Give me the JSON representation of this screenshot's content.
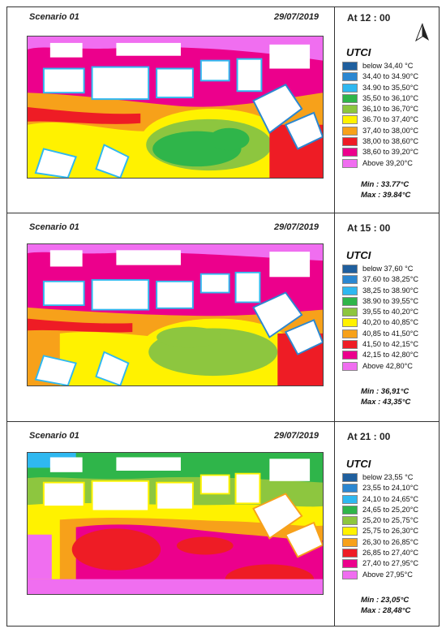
{
  "legend_title": "UTCI",
  "panels": [
    {
      "scenario": "Scenario 01",
      "date": "29/07/2019",
      "time": "At  12 : 00",
      "min": "Min : 33.77°C",
      "max": "Max : 39.84°C",
      "legend": [
        {
          "label": "below   34,40 °C",
          "color": "#1f5f9e"
        },
        {
          "label": "34,40 to 34.90°C",
          "color": "#2b87d1"
        },
        {
          "label": "34.90 to 35,50°C",
          "color": "#2fb8f0"
        },
        {
          "label": "35,50 to 36,10°C",
          "color": "#2fb54a"
        },
        {
          "label": "36,10 to 36,70°C",
          "color": "#8dc63f"
        },
        {
          "label": "36.70 to 37,40°C",
          "color": "#fff200"
        },
        {
          "label": "37,40 to 38,00°C",
          "color": "#f7a11a"
        },
        {
          "label": "38,00 to 38,60°C",
          "color": "#ee1c25"
        },
        {
          "label": "38,60 to 39,20°C",
          "color": "#ec008c"
        },
        {
          "label": "Above   39,20°C",
          "color": "#f06ef0"
        }
      ]
    },
    {
      "scenario": "Scenario 01",
      "date": "29/07/2019",
      "time": "At  15 : 00",
      "min": "Min : 36,91°C",
      "max": "Max : 43,35°C",
      "legend": [
        {
          "label": "below   37,60 °C",
          "color": "#1f5f9e"
        },
        {
          "label": "37.60 to 38,25°C",
          "color": "#2b87d1"
        },
        {
          "label": "38,25 to 38.90°C",
          "color": "#2fb8f0"
        },
        {
          "label": "38.90 to 39,55°C",
          "color": "#2fb54a"
        },
        {
          "label": "39,55 to 40,20°C",
          "color": "#8dc63f"
        },
        {
          "label": "40,20 to 40,85°C",
          "color": "#fff200"
        },
        {
          "label": "40,85 to 41,50°C",
          "color": "#f7a11a"
        },
        {
          "label": "41,50 to 42,15°C",
          "color": "#ee1c25"
        },
        {
          "label": "42,15 to 42,80°C",
          "color": "#ec008c"
        },
        {
          "label": "Above   42,80°C",
          "color": "#f06ef0"
        }
      ]
    },
    {
      "scenario": "Scenario 01",
      "date": "29/07/2019",
      "time": "At  21 : 00",
      "min": "Min : 23,05°C",
      "max": "Max : 28,48°C",
      "legend": [
        {
          "label": "below   23,55 °C",
          "color": "#1f5f9e"
        },
        {
          "label": "23,55 to 24,10°C",
          "color": "#2b87d1"
        },
        {
          "label": "24,10 to 24,65°C",
          "color": "#2fb8f0"
        },
        {
          "label": "24,65 to 25,20°C",
          "color": "#2fb54a"
        },
        {
          "label": "25,20 to 25,75°C",
          "color": "#8dc63f"
        },
        {
          "label": "25,75 to 26,30°C",
          "color": "#fff200"
        },
        {
          "label": "26,30 to 26,85°C",
          "color": "#f7a11a"
        },
        {
          "label": "26,85 to 27,40°C",
          "color": "#ee1c25"
        },
        {
          "label": "27,40 to 27,95°C",
          "color": "#ec008c"
        },
        {
          "label": "Above   27,95°C",
          "color": "#f06ef0"
        }
      ]
    }
  ]
}
